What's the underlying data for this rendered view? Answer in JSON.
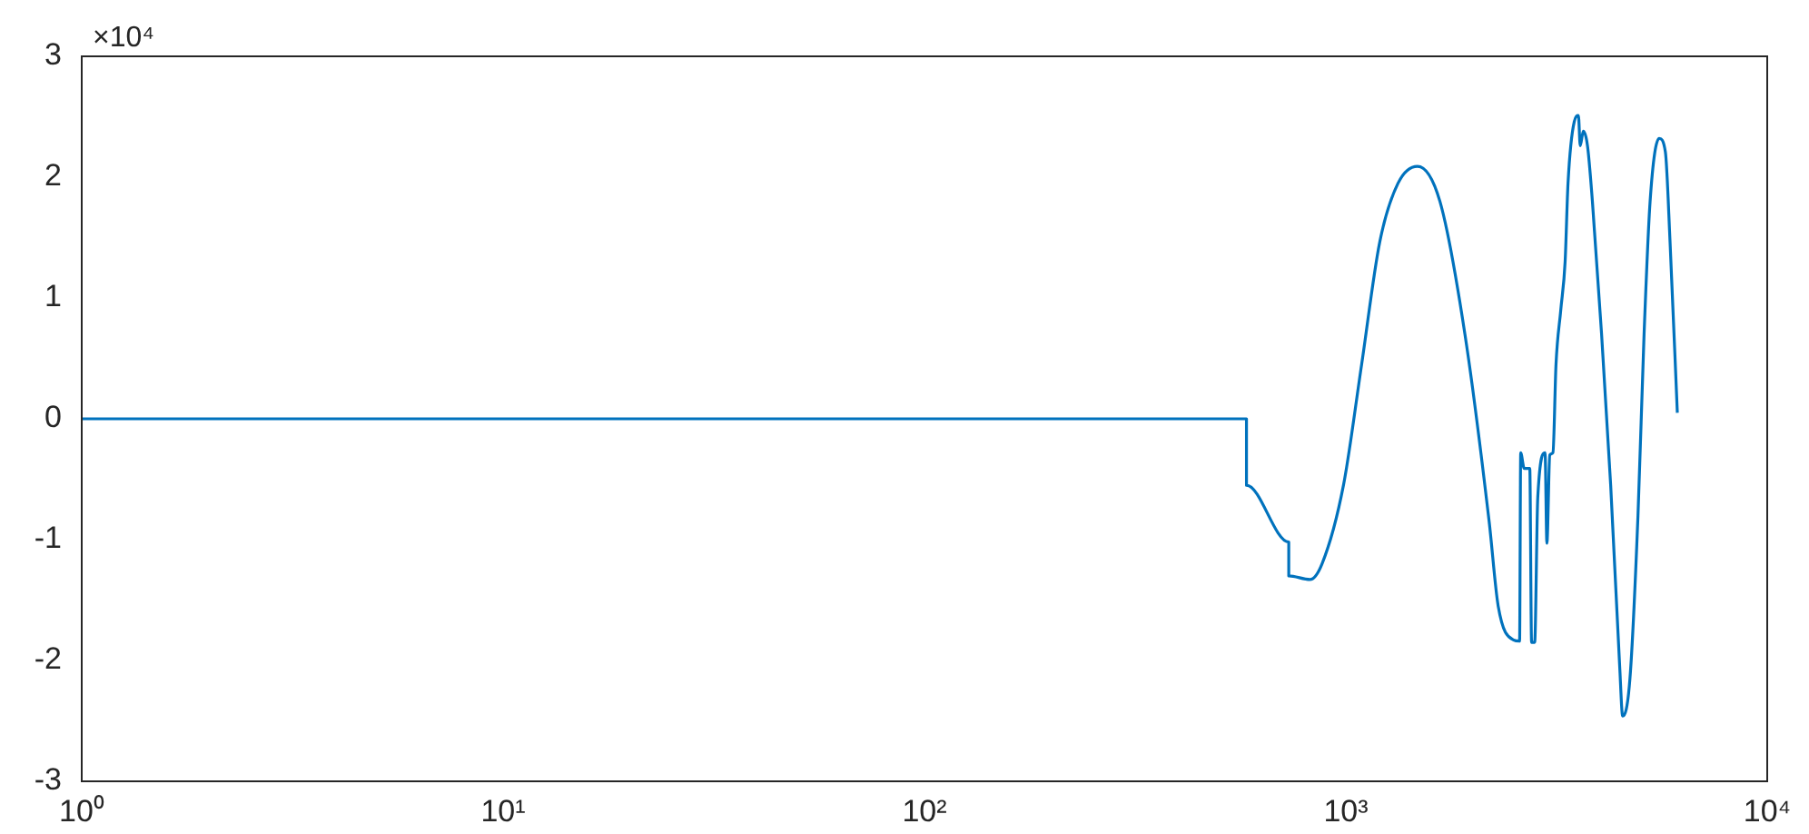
{
  "chart_data": {
    "type": "line",
    "log": "x",
    "grid": false,
    "legend": false,
    "marker": "none",
    "line_style": "solid",
    "annotations": [
      "×10⁴"
    ],
    "xlim": [
      1,
      10000
    ],
    "xticks": [
      {
        "value": 1,
        "label": "10⁰"
      },
      {
        "value": 10,
        "label": "10¹"
      },
      {
        "value": 100,
        "label": "10²"
      },
      {
        "value": 1000,
        "label": "10³"
      },
      {
        "value": 10000,
        "label": "10⁴"
      }
    ],
    "ylim": [
      -3,
      3
    ],
    "yticks": [
      -3,
      -2,
      -1,
      0,
      1,
      2,
      3
    ],
    "series": [
      {
        "color": "#0072bd",
        "x": [
          1,
          581,
          581,
          732,
          732,
          822,
          878,
          987,
          1090,
          1203,
          1330,
          1479,
          1672,
          1917,
          2188,
          2299,
          2498,
          2584,
          2600,
          2650,
          2732,
          2759,
          2806,
          2854,
          2970,
          3000,
          3048,
          3101,
          3153,
          3236,
          3314,
          3367,
          3484,
          3564,
          3599,
          3660,
          3745,
          3847,
          4045,
          4251,
          4467,
          4539,
          4723,
          4935,
          5102,
          5273,
          5541,
          5731,
          5881,
          6119
        ],
        "values": [
          0,
          0,
          -0.55,
          -1.02,
          -1.3,
          -1.33,
          -1.2,
          -0.55,
          0.45,
          1.46,
          1.95,
          2.09,
          1.8,
          0.7,
          -0.85,
          -1.55,
          -1.83,
          -1.84,
          -0.28,
          -0.41,
          -0.41,
          -1.85,
          -1.85,
          -0.65,
          -0.28,
          -1.03,
          -0.3,
          -0.28,
          0.45,
          0.9,
          1.3,
          1.95,
          2.46,
          2.51,
          2.26,
          2.38,
          2.26,
          1.8,
          0.7,
          -0.55,
          -2.06,
          -2.46,
          -2.15,
          -0.8,
          0.7,
          1.8,
          2.32,
          2.21,
          1.46,
          0.05
        ]
      }
    ]
  }
}
